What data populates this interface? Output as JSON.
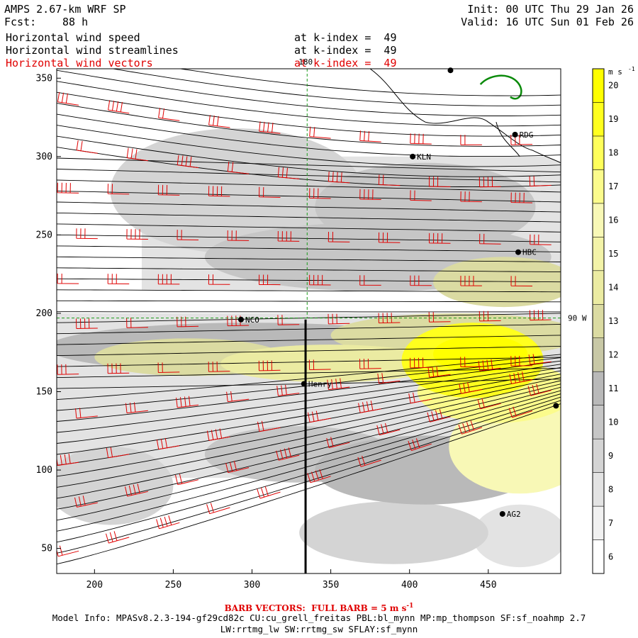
{
  "header": {
    "title": "AMPS 2.67-km WRF SP",
    "forecast_label": "Fcst:",
    "forecast_value": "88 h",
    "init": "Init: 00 UTC Thu 29 Jan 26",
    "valid": "Valid: 16 UTC Sun 01 Feb 26",
    "fields": [
      {
        "name": "Horizontal wind speed",
        "level": "at k-index =  49"
      },
      {
        "name": "Horizontal wind streamlines",
        "level": "at k-index =  49"
      },
      {
        "name": "Horizontal wind vectors",
        "level": "at k-index =  49"
      }
    ]
  },
  "footer": {
    "barb_prefix": "BARB VECTORS:  FULL BARB = 5 m s",
    "barb_exp": "-1",
    "model_info": "Model Info: MPASv8.2.3-194-gf29cd82c CU:cu_grell_freitas PBL:bl_mynn MP:mp_thompson SF:sf_noahmp 2.7",
    "model_info2": "LW:rrtmg_lw SW:rrtmg_sw SFLAY:sf_mynn"
  },
  "colors": {
    "barb": "#e00000",
    "streamline": "#000000",
    "coast": "#000000",
    "contour_green": "#0a8a0a",
    "grid": "#1a9a1a"
  },
  "chart_data": {
    "type": "heatmap",
    "title": "Horizontal wind speed / streamlines / vectors at k-index = 49",
    "x_ticks": [
      200,
      250,
      300,
      350,
      400,
      450
    ],
    "y_ticks": [
      50,
      100,
      150,
      200,
      250,
      300,
      350
    ],
    "xlim": [
      176,
      496
    ],
    "ylim": [
      34,
      356
    ],
    "colorbar": {
      "unit": "m s",
      "unit_exp": "-1",
      "levels": [
        6,
        7,
        8,
        9,
        10,
        11,
        12,
        13,
        14,
        15,
        16,
        17,
        18,
        19,
        20
      ],
      "colors": [
        "#ffffff",
        "#f1f1f1",
        "#e3e3e3",
        "#d4d4d4",
        "#c6c6c6",
        "#b9b9b9",
        "#c8c8a6",
        "#dbdba2",
        "#ebeba2",
        "#f3f3a8",
        "#f8f8b6",
        "#fbfb8c",
        "#ffff5a",
        "#ffff1e",
        "#ffff00"
      ]
    },
    "lon_labels": [
      {
        "text": "180",
        "x": 335,
        "y": 356
      },
      {
        "text": "90 W",
        "x": 496,
        "y": 197
      }
    ],
    "stations": [
      {
        "name": "NCO",
        "x": 293,
        "y": 196
      },
      {
        "name": "Henry",
        "x": 333,
        "y": 155
      },
      {
        "name": "KLN",
        "x": 402,
        "y": 300
      },
      {
        "name": "RDG",
        "x": 467,
        "y": 314
      },
      {
        "name": "HBC",
        "x": 469,
        "y": 239
      },
      {
        "name": "AG2",
        "x": 459,
        "y": 72
      },
      {
        "name": "",
        "x": 493,
        "y": 141
      },
      {
        "name": "",
        "x": 426,
        "y": 355
      }
    ],
    "cross_section": {
      "x": 334,
      "y_from": 34,
      "y_to": 196
    },
    "speed_blobs": [
      {
        "x": 290,
        "y": 278,
        "rx": 80,
        "ry": 40,
        "v": 9
      },
      {
        "x": 410,
        "y": 268,
        "rx": 70,
        "ry": 28,
        "v": 10
      },
      {
        "x": 380,
        "y": 236,
        "rx": 110,
        "ry": 22,
        "v": 10
      },
      {
        "x": 460,
        "y": 220,
        "rx": 45,
        "ry": 16,
        "v": 13
      },
      {
        "x": 430,
        "y": 186,
        "rx": 80,
        "ry": 14,
        "v": 13
      },
      {
        "x": 300,
        "y": 178,
        "rx": 130,
        "ry": 16,
        "v": 11
      },
      {
        "x": 260,
        "y": 172,
        "rx": 60,
        "ry": 12,
        "v": 13
      },
      {
        "x": 350,
        "y": 168,
        "rx": 70,
        "ry": 12,
        "v": 14
      },
      {
        "x": 440,
        "y": 170,
        "rx": 45,
        "ry": 24,
        "v": 19
      },
      {
        "x": 445,
        "y": 174,
        "rx": 30,
        "ry": 12,
        "v": 20
      },
      {
        "x": 455,
        "y": 150,
        "rx": 50,
        "ry": 20,
        "v": 17
      },
      {
        "x": 470,
        "y": 115,
        "rx": 45,
        "ry": 30,
        "v": 16
      },
      {
        "x": 410,
        "y": 100,
        "rx": 70,
        "ry": 22,
        "v": 11
      },
      {
        "x": 330,
        "y": 110,
        "rx": 60,
        "ry": 18,
        "v": 10
      },
      {
        "x": 210,
        "y": 90,
        "rx": 40,
        "ry": 25,
        "v": 9
      },
      {
        "x": 390,
        "y": 60,
        "rx": 60,
        "ry": 20,
        "v": 9
      },
      {
        "x": 470,
        "y": 58,
        "rx": 30,
        "ry": 20,
        "v": 8
      }
    ]
  }
}
